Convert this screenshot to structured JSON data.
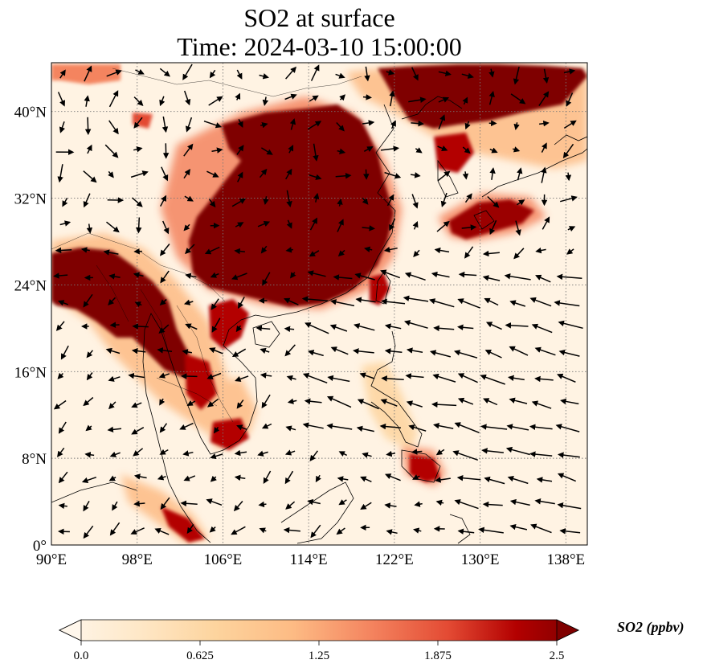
{
  "title": {
    "line1": "SO2 at surface",
    "line2": "Time: 2024-03-10 15:00:00"
  },
  "map": {
    "lon_range": [
      90,
      140
    ],
    "lat_range": [
      0,
      44.5
    ],
    "lon_ticks": [
      "90°E",
      "98°E",
      "106°E",
      "114°E",
      "122°E",
      "130°E",
      "138°E"
    ],
    "lon_tick_values": [
      90,
      98,
      106,
      114,
      122,
      130,
      138
    ],
    "lat_ticks": [
      "0°",
      "8°N",
      "16°N",
      "24°N",
      "32°N",
      "40°N"
    ],
    "lat_tick_values": [
      0,
      8,
      16,
      24,
      32,
      40
    ],
    "gridlines": true,
    "colormap": "OrRd",
    "colors": {
      "low": "#fff7ec",
      "light": "#fdd49e",
      "mid": "#f4845f",
      "high": "#b30000",
      "max": "#7f0000",
      "arrow": "#000000",
      "coast": "#000000"
    }
  },
  "colorbar": {
    "label": "SO2 (ppbv)",
    "min": 0.0,
    "max": 2.5,
    "extend": "both",
    "ticks": [
      "0.0",
      "0.625",
      "1.25",
      "1.875",
      "2.5"
    ],
    "tick_values": [
      0.0,
      0.625,
      1.25,
      1.875,
      2.5
    ]
  }
}
